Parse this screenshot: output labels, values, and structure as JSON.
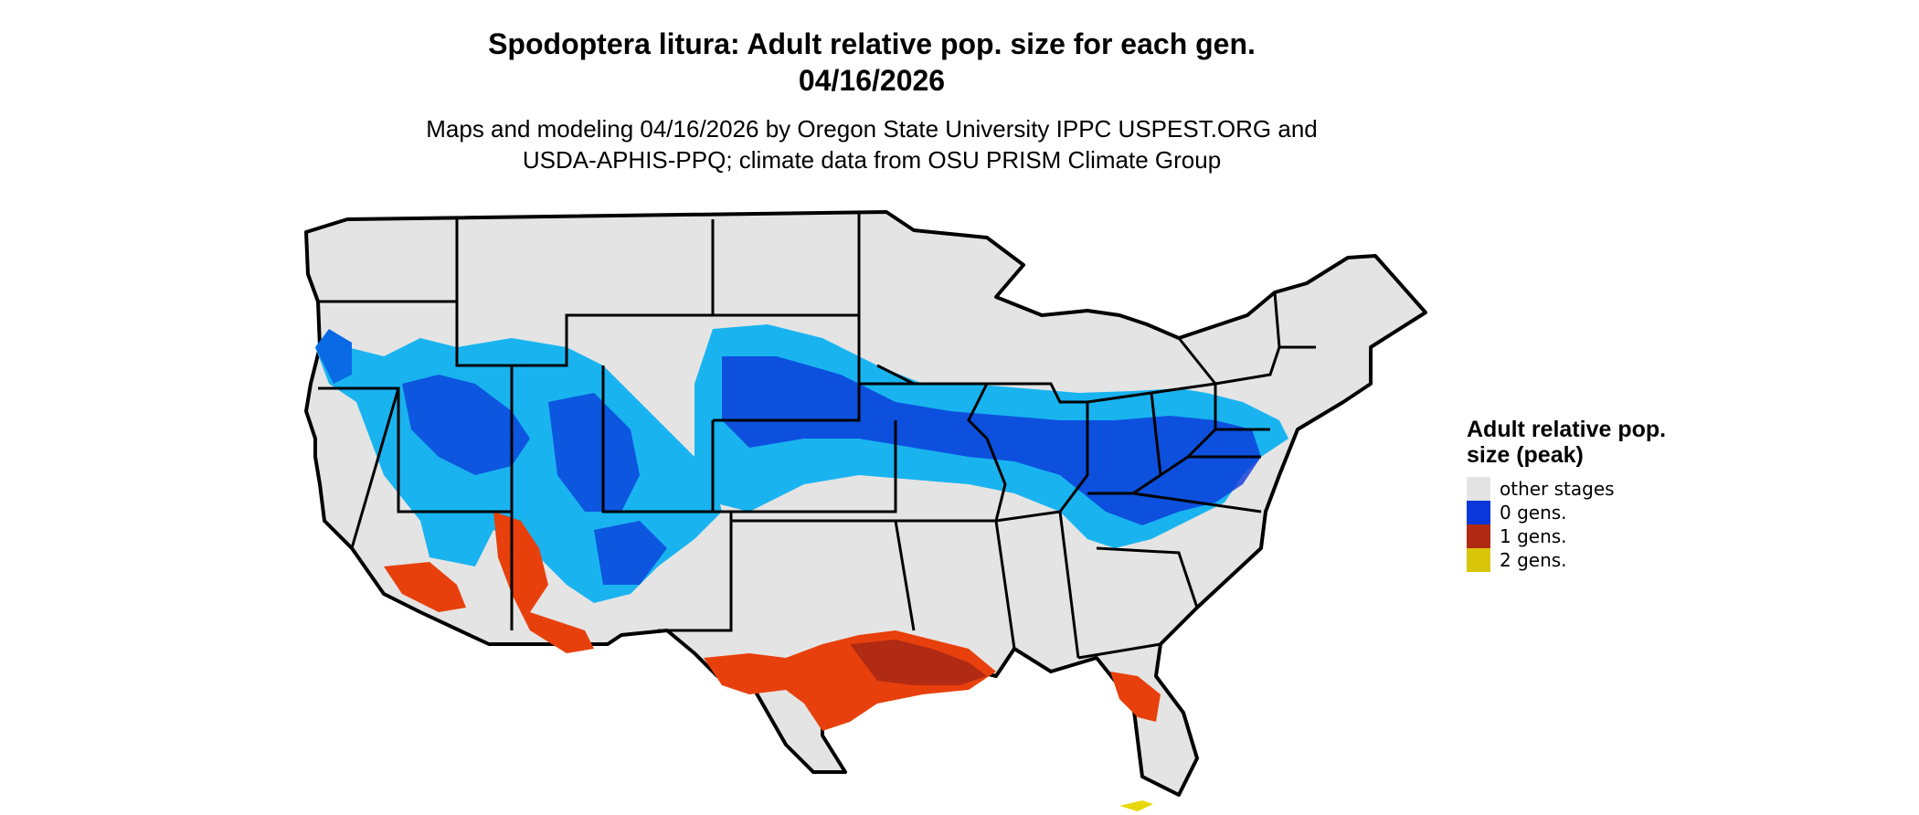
{
  "title": {
    "line1": "Spodoptera litura: Adult relative pop. size for each gen.",
    "line2": "04/16/2026"
  },
  "subtitle": {
    "line1": "Maps and modeling 04/16/2026 by Oregon State University IPPC USPEST.ORG and",
    "line2": "USDA-APHIS-PPQ; climate data from OSU PRISM Climate Group"
  },
  "legend": {
    "title": "Adult relative pop. size (peak)",
    "items": [
      {
        "label": "other stages",
        "color": "#e4e4e4"
      },
      {
        "label": "0 gens.",
        "color": "#0a37d9"
      },
      {
        "label": "1 gens.",
        "color": "#b02a14"
      },
      {
        "label": "2 gens.",
        "color": "#d9c50a"
      }
    ]
  },
  "colors": {
    "land": "#e4e4e4",
    "border": "#000000",
    "zero_light": "#19b4f0",
    "zero_mid": "#0a6ae6",
    "zero_dark": "#0a37d9",
    "one_light": "#e8400c",
    "one_dark": "#b02a14",
    "two": "#e8d80a"
  }
}
